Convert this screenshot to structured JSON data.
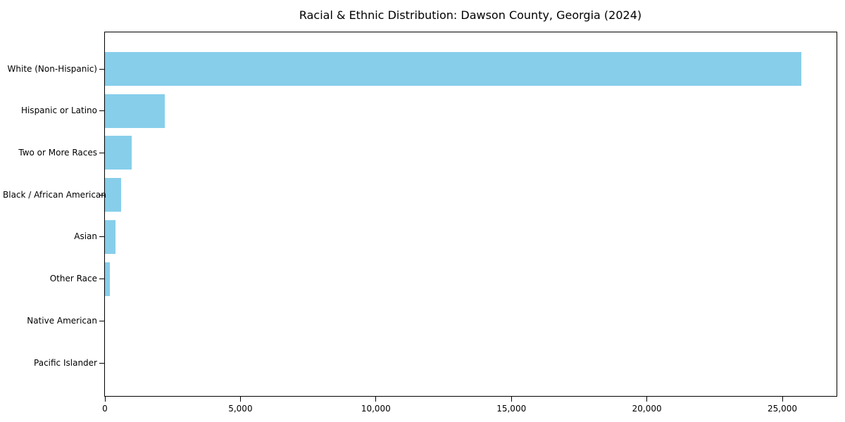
{
  "chart_data": {
    "type": "bar",
    "orientation": "horizontal",
    "title": "Racial & Ethnic Distribution: Dawson County, Georgia (2024)",
    "categories": [
      "White (Non-Hispanic)",
      "Hispanic or Latino",
      "Two or More Races",
      "Black / African American",
      "Asian",
      "Other Race",
      "Native American",
      "Pacific Islander"
    ],
    "values": [
      25700,
      2200,
      1000,
      600,
      400,
      190,
      0,
      0
    ],
    "xlabel": "",
    "ylabel": "",
    "xlim": [
      0,
      27000
    ],
    "xticks": [
      0,
      5000,
      10000,
      15000,
      20000,
      25000
    ],
    "xtick_labels": [
      "0",
      "5,000",
      "10,000",
      "15,000",
      "20,000",
      "25,000"
    ],
    "bar_color": "#87CEEB",
    "axis_color": "#000000",
    "background_color": "#ffffff",
    "grid": false,
    "legend": null
  }
}
